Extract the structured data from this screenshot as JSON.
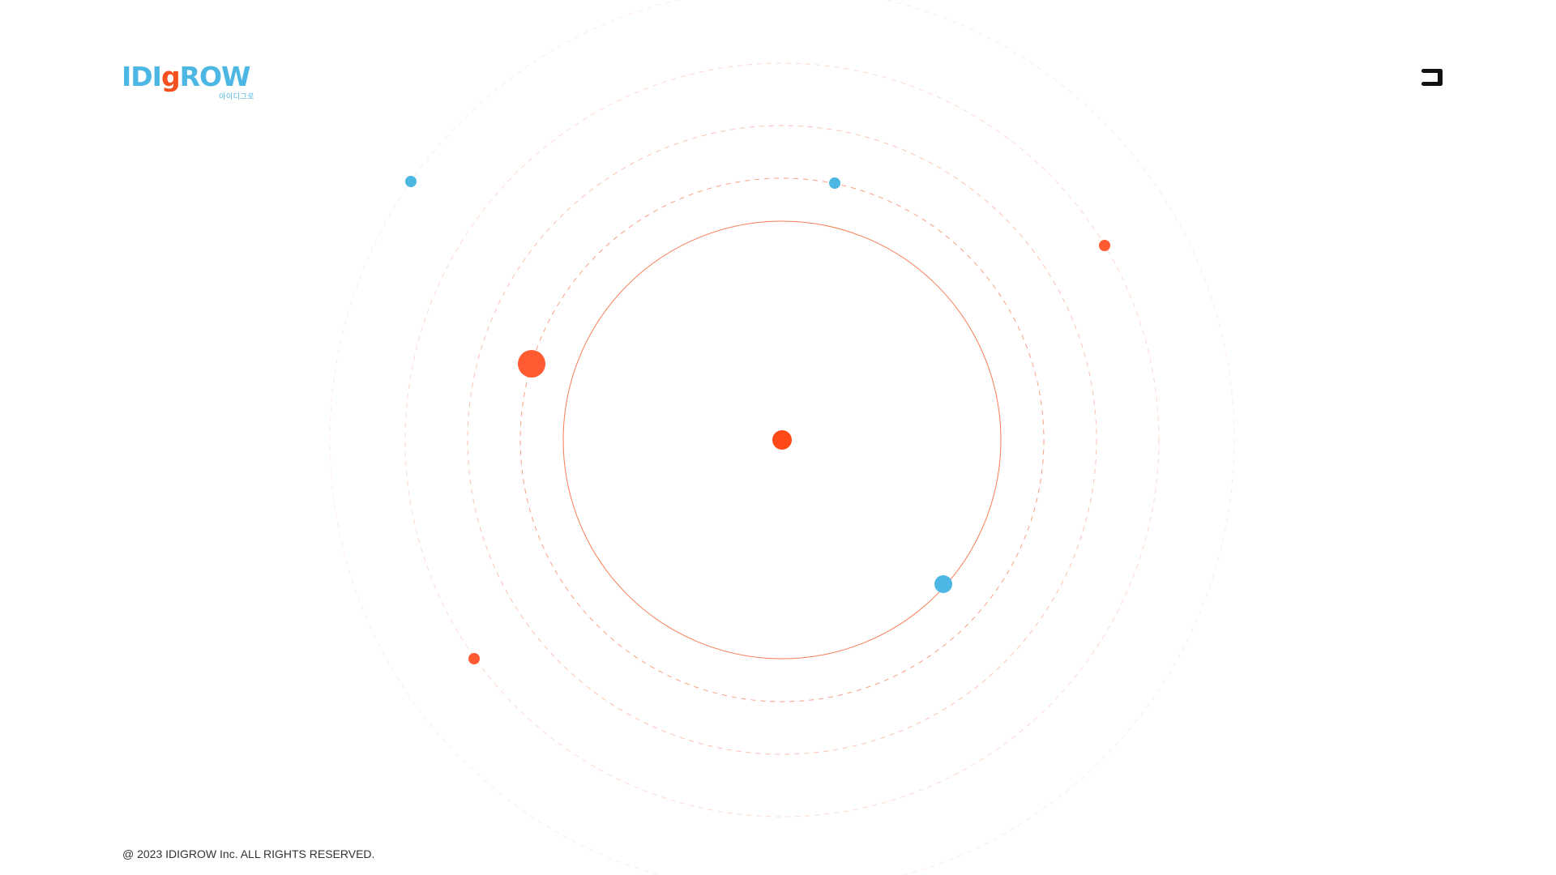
{
  "header": {
    "logo_text_before": "IDI",
    "logo_text_g": "g",
    "logo_text_after": "ROW",
    "logo_subtext": "아이디그로",
    "menu_icon": "hamburger-menu-icon"
  },
  "footer": {
    "copyright": "@ 2023 IDIGROW Inc. ALL RIGHTS RESERVED."
  },
  "colors": {
    "brand_blue": "#4DB7E3",
    "brand_orange": "#F4511E",
    "text_dark": "#333333",
    "menu_icon": "#111111"
  }
}
